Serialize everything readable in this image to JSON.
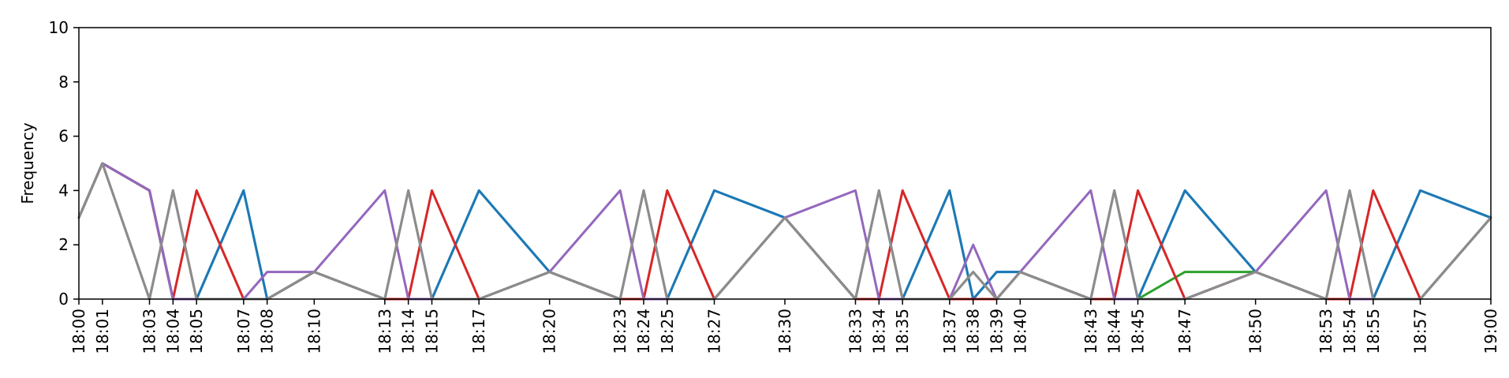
{
  "chart_data": {
    "type": "line",
    "title": "",
    "xlabel": "",
    "ylabel": "Frequency",
    "ylim": [
      0,
      10
    ],
    "yticks": [
      "0",
      "2",
      "4",
      "6",
      "8",
      "10"
    ],
    "x": [
      "18:00",
      "18:01",
      "18:03",
      "18:04",
      "18:05",
      "18:07",
      "18:08",
      "18:10",
      "18:13",
      "18:14",
      "18:15",
      "18:17",
      "18:20",
      "18:23",
      "18:24",
      "18:25",
      "18:27",
      "18:30",
      "18:33",
      "18:34",
      "18:35",
      "18:37",
      "18:38",
      "18:39",
      "18:40",
      "18:43",
      "18:44",
      "18:45",
      "18:47",
      "18:50",
      "18:53",
      "18:54",
      "18:55",
      "18:57",
      "19:00"
    ],
    "xticks": [
      "18:00",
      "18:01",
      "18:03",
      "18:04",
      "18:05",
      "18:07",
      "18:08",
      "18:10",
      "18:13",
      "18:14",
      "18:15",
      "18:17",
      "18:20",
      "18:23",
      "18:24",
      "18:25",
      "18:27",
      "18:30",
      "18:33",
      "18:34",
      "18:35",
      "18:37",
      "18:38",
      "18:39",
      "18:40",
      "18:43",
      "18:44",
      "18:45",
      "18:47",
      "18:50",
      "18:53",
      "18:54",
      "18:55",
      "18:57",
      "19:00"
    ],
    "grid": false,
    "legend": "none",
    "series": [
      {
        "color": "#2ca02c",
        "values": [
          3,
          5,
          4,
          0,
          0,
          0,
          0,
          1,
          0,
          0,
          0,
          0,
          1,
          0,
          0,
          0,
          0,
          3,
          0,
          0,
          0,
          0,
          0,
          0,
          1,
          0,
          0,
          0,
          1,
          1,
          0,
          0,
          0,
          0,
          3
        ]
      },
      {
        "color": "#17becf",
        "values": [
          3,
          5,
          4,
          0,
          0,
          4,
          0,
          1,
          0,
          0,
          0,
          4,
          1,
          0,
          0,
          0,
          4,
          3,
          0,
          0,
          0,
          4,
          0,
          1,
          1,
          0,
          0,
          0,
          4,
          1,
          0,
          0,
          0,
          4,
          3
        ]
      },
      {
        "color": "#1f77b4",
        "values": [
          3,
          5,
          4,
          0,
          0,
          4,
          0,
          1,
          0,
          0,
          0,
          4,
          1,
          0,
          0,
          0,
          4,
          3,
          0,
          0,
          0,
          4,
          0,
          1,
          1,
          0,
          0,
          0,
          4,
          1,
          0,
          0,
          0,
          4,
          3
        ]
      },
      {
        "color": "#d62728",
        "values": [
          3,
          5,
          4,
          0,
          4,
          0,
          0,
          1,
          0,
          0,
          4,
          0,
          1,
          0,
          0,
          4,
          0,
          3,
          0,
          0,
          4,
          0,
          0,
          0,
          1,
          0,
          0,
          4,
          0,
          1,
          0,
          0,
          4,
          0,
          3
        ]
      },
      {
        "color": "#7f7f7f",
        "values": [
          3,
          5,
          0,
          4,
          0,
          0,
          0,
          1,
          0,
          4,
          0,
          0,
          1,
          0,
          4,
          0,
          0,
          3,
          0,
          4,
          0,
          0,
          1,
          0,
          1,
          0,
          4,
          0,
          0,
          1,
          0,
          4,
          0,
          0,
          3
        ]
      },
      {
        "color": "#9467bd",
        "values": [
          3,
          5,
          4,
          0,
          0,
          0,
          1,
          1,
          4,
          0,
          0,
          0,
          1,
          4,
          0,
          0,
          0,
          3,
          4,
          0,
          0,
          0,
          2,
          0,
          1,
          4,
          0,
          0,
          0,
          1,
          4,
          0,
          0,
          0,
          3
        ]
      },
      {
        "color": "#8c8c8c",
        "values": [
          3,
          5,
          0,
          4,
          0,
          0,
          0,
          1,
          0,
          4,
          0,
          0,
          1,
          0,
          4,
          0,
          0,
          3,
          0,
          4,
          0,
          0,
          1,
          0,
          1,
          0,
          4,
          0,
          0,
          1,
          0,
          4,
          0,
          0,
          3
        ]
      }
    ]
  }
}
